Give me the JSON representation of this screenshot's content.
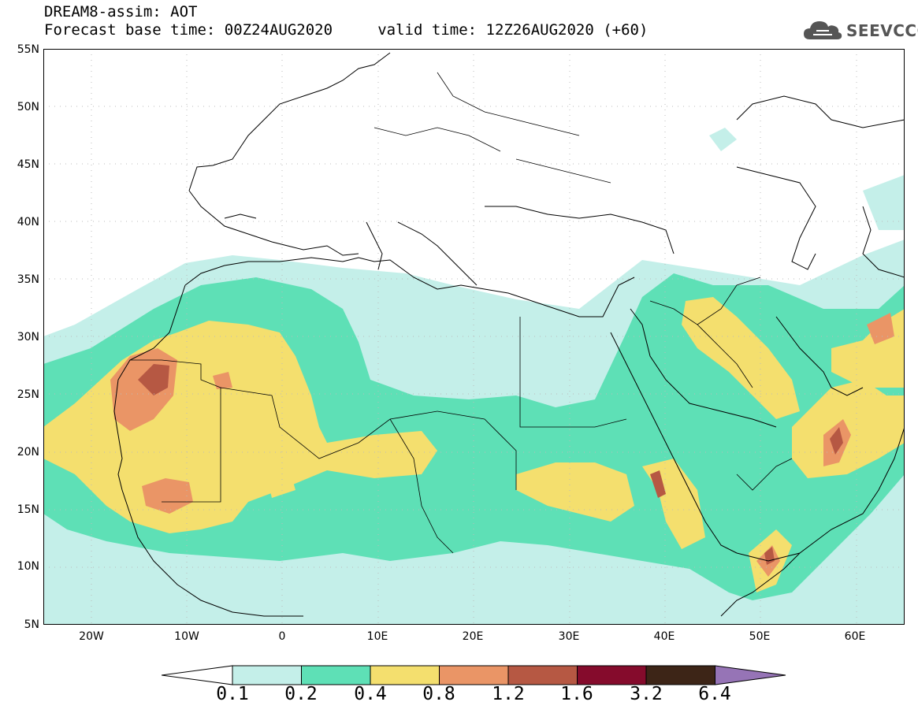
{
  "header": {
    "title": "DREAM8-assim: AOT",
    "forecast_line": "Forecast base time: 00Z24AUG2020     valid time: 12Z26AUG2020 (+60)",
    "logo_text": "SEEVCCC"
  },
  "axes": {
    "lat_labels": [
      "55N",
      "50N",
      "45N",
      "40N",
      "35N",
      "30N",
      "25N",
      "20N",
      "15N",
      "10N",
      "5N"
    ],
    "lon_labels": [
      "20W",
      "10W",
      "0",
      "10E",
      "20E",
      "30E",
      "40E",
      "50E",
      "60E"
    ]
  },
  "colorbar": {
    "levels": [
      "0.1",
      "0.2",
      "0.4",
      "0.8",
      "1.2",
      "1.6",
      "3.2",
      "6.4"
    ],
    "colors": [
      "#ffffff",
      "#c4efe9",
      "#5ee0b6",
      "#f4df6e",
      "#ea9566",
      "#b65843",
      "#850b2c",
      "#3d2517",
      "#9674b6"
    ]
  },
  "map_data": {
    "variable": "AOT",
    "extent": {
      "lon": [
        -25,
        65
      ],
      "lat": [
        5,
        55
      ]
    },
    "grid_spacing_deg": 5
  }
}
